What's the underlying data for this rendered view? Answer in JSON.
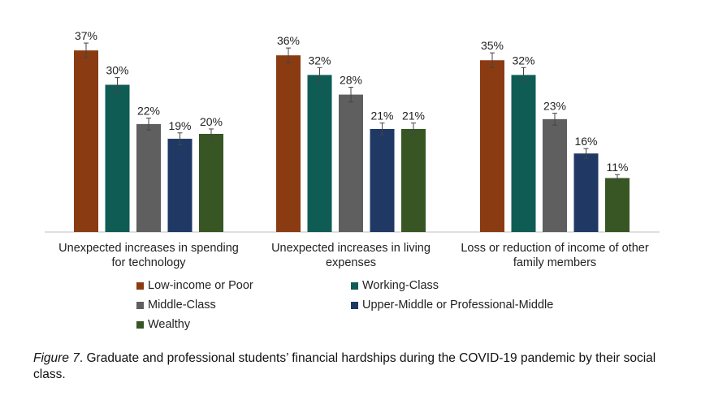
{
  "chart_data": {
    "type": "bar",
    "categories": [
      [
        "Unexpected increases in spending",
        "for technology"
      ],
      [
        "Unexpected increases in living",
        "expenses"
      ],
      [
        "Loss or reduction of income of other",
        "family members"
      ]
    ],
    "series": [
      {
        "name": "Low-income or Poor",
        "color": "#8a3b12",
        "values": [
          37,
          36,
          35
        ],
        "labels": [
          "37%",
          "36%",
          "35%"
        ],
        "errors": [
          1.5,
          1.5,
          1.5
        ]
      },
      {
        "name": "Working-Class",
        "color": "#0f5c55",
        "values": [
          30,
          32,
          32
        ],
        "labels": [
          "30%",
          "32%",
          "32%"
        ],
        "errors": [
          1.5,
          1.5,
          1.5
        ]
      },
      {
        "name": "Middle-Class",
        "color": "#5f5f5f",
        "values": [
          22,
          28,
          23
        ],
        "labels": [
          "22%",
          "28%",
          "23%"
        ],
        "errors": [
          1.2,
          1.5,
          1.2
        ]
      },
      {
        "name": "Upper-Middle or Professional-Middle",
        "color": "#1f3864",
        "values": [
          19,
          21,
          16
        ],
        "labels": [
          "19%",
          "21%",
          "16%"
        ],
        "errors": [
          1.2,
          1.2,
          1.0
        ]
      },
      {
        "name": "Wealthy",
        "color": "#375623",
        "values": [
          20,
          21,
          11
        ],
        "labels": [
          "20%",
          "21%",
          "11%"
        ],
        "errors": [
          1.0,
          1.2,
          0.7
        ]
      }
    ],
    "ylim": [
      0,
      40
    ],
    "grid": false,
    "legend_position": "bottom"
  },
  "caption": {
    "figure_label": "Figure 7",
    "text": ". Graduate and professional students’ financial hardships during the COVID-19 pandemic by their social class."
  }
}
